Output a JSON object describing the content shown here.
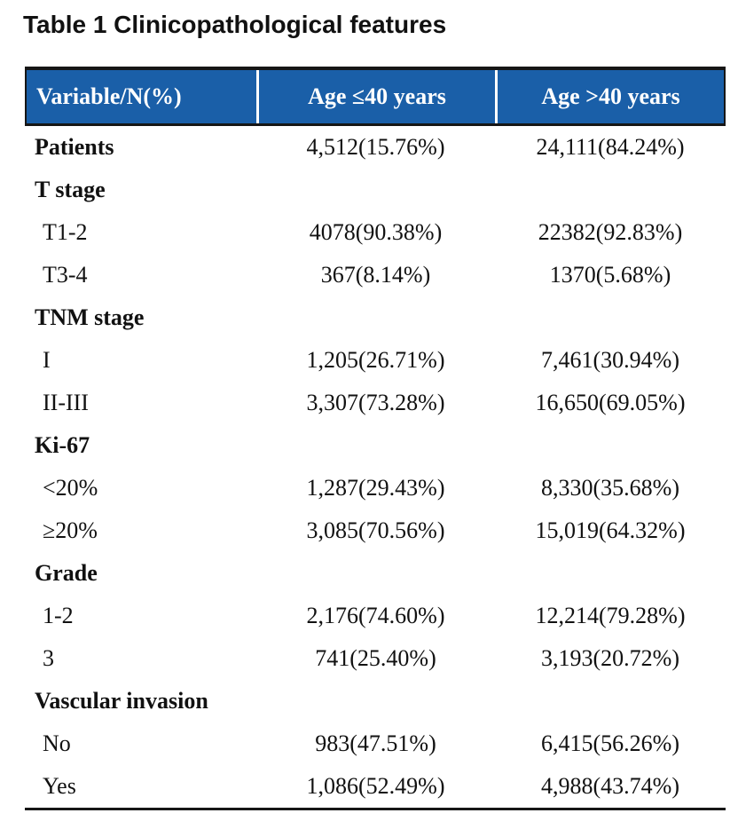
{
  "page": {
    "title": "Table 1 Clinicopathological features"
  },
  "table": {
    "header_bg_color": "#1A5FA8",
    "header_text_color": "#FFFFFF",
    "border_color": "#161616",
    "columns": [
      "Variable/N(%)",
      "Age ≤40 years",
      "Age >40 years"
    ],
    "rows": [
      {
        "label": "Patients",
        "bold": true,
        "age_le40": "4,512(15.76%)",
        "age_gt40": "24,111(84.24%)"
      },
      {
        "label": "T stage",
        "bold": true,
        "age_le40": "",
        "age_gt40": ""
      },
      {
        "label": "T1-2",
        "bold": false,
        "age_le40": "4078(90.38%)",
        "age_gt40": "22382(92.83%)"
      },
      {
        "label": "T3-4",
        "bold": false,
        "age_le40": "367(8.14%)",
        "age_gt40": "1370(5.68%)"
      },
      {
        "label": "TNM stage",
        "bold": true,
        "age_le40": "",
        "age_gt40": ""
      },
      {
        "label": "I",
        "bold": false,
        "age_le40": "1,205(26.71%)",
        "age_gt40": "7,461(30.94%)"
      },
      {
        "label": "II-III",
        "bold": false,
        "age_le40": "3,307(73.28%)",
        "age_gt40": "16,650(69.05%)"
      },
      {
        "label": "Ki-67",
        "bold": true,
        "age_le40": "",
        "age_gt40": ""
      },
      {
        "label": "<20%",
        "bold": false,
        "age_le40": "1,287(29.43%)",
        "age_gt40": "8,330(35.68%)"
      },
      {
        "label": "≥20%",
        "bold": false,
        "age_le40": "3,085(70.56%)",
        "age_gt40": "15,019(64.32%)"
      },
      {
        "label": "Grade",
        "bold": true,
        "age_le40": "",
        "age_gt40": ""
      },
      {
        "label": "1-2",
        "bold": false,
        "age_le40": "2,176(74.60%)",
        "age_gt40": "12,214(79.28%)"
      },
      {
        "label": "3",
        "bold": false,
        "age_le40": "741(25.40%)",
        "age_gt40": "3,193(20.72%)"
      },
      {
        "label": "Vascular invasion",
        "bold": true,
        "age_le40": "",
        "age_gt40": ""
      },
      {
        "label": "No",
        "bold": false,
        "age_le40": "983(47.51%)",
        "age_gt40": "6,415(56.26%)"
      },
      {
        "label": "Yes",
        "bold": false,
        "age_le40": "1,086(52.49%)",
        "age_gt40": "4,988(43.74%)"
      }
    ]
  }
}
